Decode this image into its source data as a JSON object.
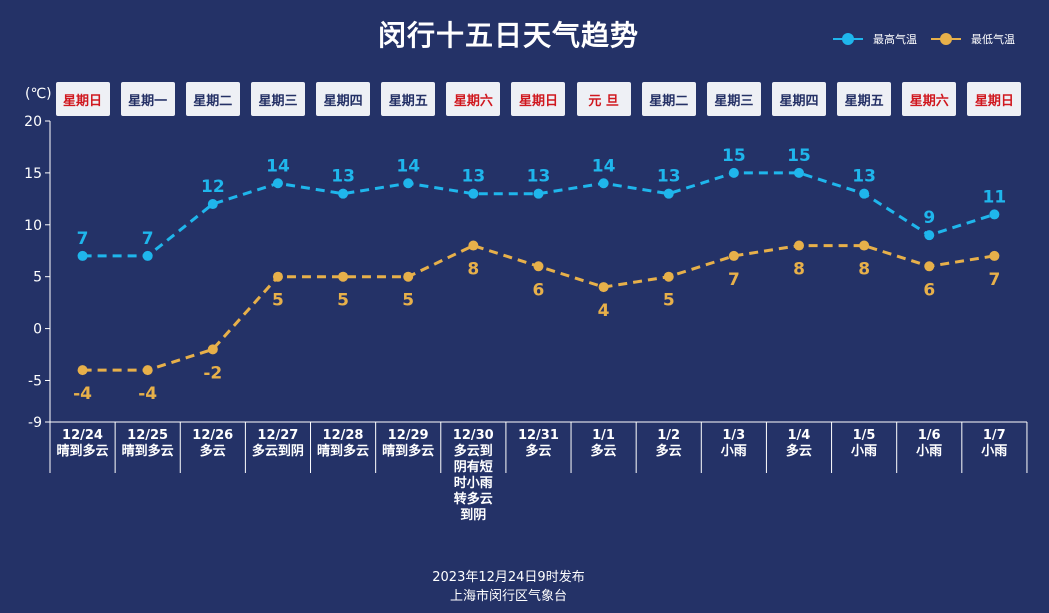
{
  "title": "闵行十五日天气趋势",
  "legend": {
    "high_label": "最高气温",
    "low_label": "最低气温"
  },
  "unit_label": "(℃)",
  "colors": {
    "background": "#243267",
    "high": "#1fb6ec",
    "low": "#e7b04a",
    "holiday_text": "#d0181f",
    "weekday_text": "#253166"
  },
  "weekdays": [
    {
      "label": "星期日",
      "holiday": true
    },
    {
      "label": "星期一",
      "holiday": false
    },
    {
      "label": "星期二",
      "holiday": false
    },
    {
      "label": "星期三",
      "holiday": false
    },
    {
      "label": "星期四",
      "holiday": false
    },
    {
      "label": "星期五",
      "holiday": false
    },
    {
      "label": "星期六",
      "holiday": true
    },
    {
      "label": "星期日",
      "holiday": true
    },
    {
      "label": "元 旦",
      "holiday": true
    },
    {
      "label": "星期二",
      "holiday": false
    },
    {
      "label": "星期三",
      "holiday": false
    },
    {
      "label": "星期四",
      "holiday": false
    },
    {
      "label": "星期五",
      "holiday": false
    },
    {
      "label": "星期六",
      "holiday": true
    },
    {
      "label": "星期日",
      "holiday": true
    }
  ],
  "chart_data": {
    "type": "line",
    "title": "闵行十五日天气趋势",
    "categories": [
      "12/24",
      "12/25",
      "12/26",
      "12/27",
      "12/28",
      "12/29",
      "12/30",
      "12/31",
      "1/1",
      "1/2",
      "1/3",
      "1/4",
      "1/5",
      "1/6",
      "1/7"
    ],
    "weather": [
      "晴到多云",
      "晴到多云",
      "多云",
      "多云到阴",
      "晴到多云",
      "晴到多云",
      "多云到阴有短时小雨转多云到阴",
      "多云",
      "多云",
      "多云",
      "小雨",
      "多云",
      "小雨",
      "小雨",
      "小雨"
    ],
    "series": [
      {
        "name": "最高气温",
        "values": [
          7,
          7,
          12,
          14,
          13,
          14,
          13,
          13,
          14,
          13,
          15,
          15,
          13,
          9,
          11
        ]
      },
      {
        "name": "最低气温",
        "values": [
          -4,
          -4,
          -2,
          5,
          5,
          5,
          8,
          6,
          4,
          5,
          7,
          8,
          8,
          6,
          7
        ]
      }
    ],
    "ylabel": "(℃)",
    "ylim": [
      -9,
      20
    ],
    "yticks": [
      20,
      15,
      10,
      5,
      0,
      -5,
      -9
    ],
    "grid": false,
    "legend_position": "top-right",
    "line_style": "dashed"
  },
  "footer": {
    "line1": "2023年12月24日9时发布",
    "line2": "上海市闵行区气象台"
  }
}
